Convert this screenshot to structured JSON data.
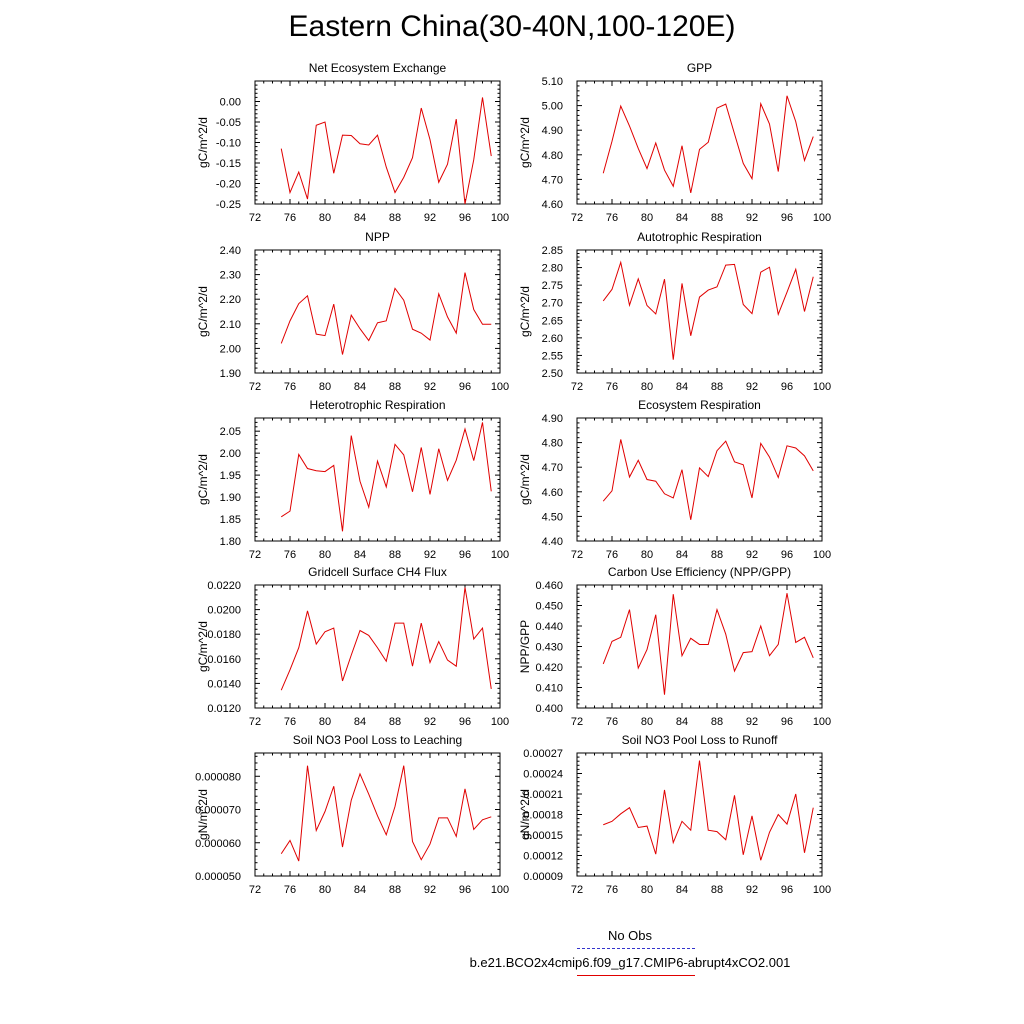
{
  "figure": {
    "title": "Eastern China(30-40N,100-120E)"
  },
  "colors": {
    "model_line": "#e00000",
    "obs_line": "#3333cc",
    "axis": "#000000"
  },
  "legend": {
    "entries": [
      {
        "label": "No Obs",
        "color": "#3333cc",
        "style": "dashed"
      },
      {
        "label": "b.e21.BCO2x4cmip6.f09_g17.CMIP6-abrupt4xCO2.001",
        "color": "#e00000",
        "style": "solid"
      }
    ]
  },
  "chart_data": [
    {
      "type": "line",
      "title": "Net Ecosystem Exchange",
      "ylabel": "gC/m^2/d",
      "xlim": [
        72,
        100
      ],
      "ylim": [
        -0.25,
        0.05
      ],
      "xticks": [
        72,
        76,
        80,
        84,
        88,
        92,
        96,
        100
      ],
      "yticks": [
        -0.25,
        -0.2,
        -0.15,
        -0.1,
        -0.05,
        0.0
      ],
      "ytick_labels": [
        "-0.25",
        "-0.20",
        "-0.15",
        "-0.10",
        "-0.05",
        "0.00"
      ],
      "x": [
        75,
        76,
        77,
        78,
        79,
        80,
        81,
        82,
        83,
        84,
        85,
        86,
        87,
        88,
        89,
        90,
        91,
        92,
        93,
        94,
        95,
        96,
        97,
        98,
        99
      ],
      "values": [
        -0.115,
        -0.222,
        -0.172,
        -0.238,
        -0.058,
        -0.05,
        -0.175,
        -0.082,
        -0.083,
        -0.103,
        -0.106,
        -0.082,
        -0.16,
        -0.222,
        -0.185,
        -0.137,
        -0.016,
        -0.093,
        -0.197,
        -0.153,
        -0.043,
        -0.25,
        -0.142,
        0.01,
        -0.133
      ]
    },
    {
      "type": "line",
      "title": "GPP",
      "ylabel": "gC/m^2/d",
      "xlim": [
        72,
        100
      ],
      "ylim": [
        4.6,
        5.1
      ],
      "xticks": [
        72,
        76,
        80,
        84,
        88,
        92,
        96,
        100
      ],
      "yticks": [
        4.6,
        4.7,
        4.8,
        4.9,
        5.0,
        5.1
      ],
      "ytick_labels": [
        "4.60",
        "4.70",
        "4.80",
        "4.90",
        "5.00",
        "5.10"
      ],
      "x": [
        75,
        76,
        77,
        78,
        79,
        80,
        81,
        82,
        83,
        84,
        85,
        86,
        87,
        88,
        89,
        90,
        91,
        92,
        93,
        94,
        95,
        96,
        97,
        98,
        99
      ],
      "values": [
        4.725,
        4.855,
        4.998,
        4.917,
        4.826,
        4.744,
        4.848,
        4.738,
        4.672,
        4.837,
        4.645,
        4.822,
        4.851,
        4.99,
        5.006,
        4.885,
        4.765,
        4.703,
        5.008,
        4.925,
        4.732,
        5.04,
        4.935,
        4.777,
        4.874
      ]
    },
    {
      "type": "line",
      "title": "NPP",
      "ylabel": "gC/m^2/d",
      "xlim": [
        72,
        100
      ],
      "ylim": [
        1.9,
        2.4
      ],
      "xticks": [
        72,
        76,
        80,
        84,
        88,
        92,
        96,
        100
      ],
      "yticks": [
        1.9,
        2.0,
        2.1,
        2.2,
        2.3,
        2.4
      ],
      "ytick_labels": [
        "1.90",
        "2.00",
        "2.10",
        "2.20",
        "2.30",
        "2.40"
      ],
      "x": [
        75,
        76,
        77,
        78,
        79,
        80,
        81,
        82,
        83,
        84,
        85,
        86,
        87,
        88,
        89,
        90,
        91,
        92,
        93,
        94,
        95,
        96,
        97,
        98,
        99
      ],
      "values": [
        2.02,
        2.112,
        2.182,
        2.214,
        2.058,
        2.052,
        2.18,
        1.975,
        2.135,
        2.08,
        2.032,
        2.104,
        2.112,
        2.244,
        2.196,
        2.078,
        2.062,
        2.034,
        2.222,
        2.128,
        2.062,
        2.308,
        2.158,
        2.098,
        2.098
      ]
    },
    {
      "type": "line",
      "title": "Autotrophic Respiration",
      "ylabel": "gC/m^2/d",
      "xlim": [
        72,
        100
      ],
      "ylim": [
        2.5,
        2.85
      ],
      "xticks": [
        72,
        76,
        80,
        84,
        88,
        92,
        96,
        100
      ],
      "yticks": [
        2.5,
        2.55,
        2.6,
        2.65,
        2.7,
        2.75,
        2.8,
        2.85
      ],
      "ytick_labels": [
        "2.50",
        "2.55",
        "2.60",
        "2.65",
        "2.70",
        "2.75",
        "2.80",
        "2.85"
      ],
      "x": [
        75,
        76,
        77,
        78,
        79,
        80,
        81,
        82,
        83,
        84,
        85,
        86,
        87,
        88,
        89,
        90,
        91,
        92,
        93,
        94,
        95,
        96,
        97,
        98,
        99
      ],
      "values": [
        2.705,
        2.738,
        2.815,
        2.693,
        2.768,
        2.692,
        2.668,
        2.767,
        2.538,
        2.755,
        2.606,
        2.716,
        2.736,
        2.745,
        2.807,
        2.809,
        2.695,
        2.669,
        2.787,
        2.801,
        2.667,
        2.73,
        2.795,
        2.675,
        2.774
      ]
    },
    {
      "type": "line",
      "title": "Heterotrophic Respiration",
      "ylabel": "gC/m^2/d",
      "xlim": [
        72,
        100
      ],
      "ylim": [
        1.8,
        2.08
      ],
      "xticks": [
        72,
        76,
        80,
        84,
        88,
        92,
        96,
        100
      ],
      "yticks": [
        1.8,
        1.85,
        1.9,
        1.95,
        2.0,
        2.05
      ],
      "ytick_labels": [
        "1.80",
        "1.85",
        "1.90",
        "1.95",
        "2.00",
        "2.05"
      ],
      "x": [
        75,
        76,
        77,
        78,
        79,
        80,
        81,
        82,
        83,
        84,
        85,
        86,
        87,
        88,
        89,
        90,
        91,
        92,
        93,
        94,
        95,
        96,
        97,
        98,
        99
      ],
      "values": [
        1.855,
        1.868,
        1.997,
        1.965,
        1.96,
        1.958,
        1.972,
        1.822,
        2.04,
        1.936,
        1.877,
        1.982,
        1.923,
        2.02,
        1.996,
        1.912,
        2.013,
        1.906,
        2.01,
        1.938,
        1.984,
        2.055,
        1.983,
        2.07,
        1.913
      ]
    },
    {
      "type": "line",
      "title": "Ecosystem Respiration",
      "ylabel": "gC/m^2/d",
      "xlim": [
        72,
        100
      ],
      "ylim": [
        4.4,
        4.9
      ],
      "xticks": [
        72,
        76,
        80,
        84,
        88,
        92,
        96,
        100
      ],
      "yticks": [
        4.4,
        4.5,
        4.6,
        4.7,
        4.8,
        4.9
      ],
      "ytick_labels": [
        "4.40",
        "4.50",
        "4.60",
        "4.70",
        "4.80",
        "4.90"
      ],
      "x": [
        75,
        76,
        77,
        78,
        79,
        80,
        81,
        82,
        83,
        84,
        85,
        86,
        87,
        88,
        89,
        90,
        91,
        92,
        93,
        94,
        95,
        96,
        97,
        98,
        99
      ],
      "values": [
        4.562,
        4.604,
        4.813,
        4.66,
        4.728,
        4.65,
        4.643,
        4.592,
        4.575,
        4.69,
        4.486,
        4.697,
        4.662,
        4.767,
        4.806,
        4.722,
        4.71,
        4.575,
        4.797,
        4.741,
        4.658,
        4.787,
        4.778,
        4.746,
        4.685
      ]
    },
    {
      "type": "line",
      "title": "Gridcell Surface CH4 Flux",
      "ylabel": "gC/m^2/d",
      "xlim": [
        72,
        100
      ],
      "ylim": [
        0.012,
        0.022
      ],
      "xticks": [
        72,
        76,
        80,
        84,
        88,
        92,
        96,
        100
      ],
      "yticks": [
        0.012,
        0.014,
        0.016,
        0.018,
        0.02,
        0.022
      ],
      "ytick_labels": [
        "0.0120",
        "0.0140",
        "0.0160",
        "0.0180",
        "0.0200",
        "0.0220"
      ],
      "x": [
        75,
        76,
        77,
        78,
        79,
        80,
        81,
        82,
        83,
        84,
        85,
        86,
        87,
        88,
        89,
        90,
        91,
        92,
        93,
        94,
        95,
        96,
        97,
        98,
        99
      ],
      "values": [
        0.01345,
        0.0151,
        0.0169,
        0.0199,
        0.0172,
        0.0182,
        0.0185,
        0.0142,
        0.0163,
        0.0183,
        0.0179,
        0.0169,
        0.0158,
        0.0189,
        0.0189,
        0.0154,
        0.0189,
        0.0157,
        0.0174,
        0.0159,
        0.0154,
        0.0218,
        0.0176,
        0.0185,
        0.01355
      ]
    },
    {
      "type": "line",
      "title": "Carbon Use Efficiency (NPP/GPP)",
      "ylabel": "NPP/GPP",
      "xlim": [
        72,
        100
      ],
      "ylim": [
        0.4,
        0.46
      ],
      "xticks": [
        72,
        76,
        80,
        84,
        88,
        92,
        96,
        100
      ],
      "yticks": [
        0.4,
        0.41,
        0.42,
        0.43,
        0.44,
        0.45,
        0.46
      ],
      "ytick_labels": [
        "0.400",
        "0.410",
        "0.420",
        "0.430",
        "0.440",
        "0.450",
        "0.460"
      ],
      "x": [
        75,
        76,
        77,
        78,
        79,
        80,
        81,
        82,
        83,
        84,
        85,
        86,
        87,
        88,
        89,
        90,
        91,
        92,
        93,
        94,
        95,
        96,
        97,
        98,
        99
      ],
      "values": [
        0.4215,
        0.4325,
        0.4345,
        0.448,
        0.4195,
        0.4285,
        0.4455,
        0.4065,
        0.4555,
        0.4255,
        0.434,
        0.431,
        0.431,
        0.448,
        0.436,
        0.418,
        0.427,
        0.4275,
        0.44,
        0.4255,
        0.431,
        0.456,
        0.432,
        0.4345,
        0.4245
      ]
    },
    {
      "type": "line",
      "title": "Soil NO3 Pool Loss to Leaching",
      "ylabel": "gN/m^2/d",
      "xlim": [
        72,
        100
      ],
      "ylim": [
        5e-05,
        8.7e-05
      ],
      "xticks": [
        72,
        76,
        80,
        84,
        88,
        92,
        96,
        100
      ],
      "yticks": [
        5e-05,
        6e-05,
        7e-05,
        8e-05
      ],
      "ytick_labels": [
        "0.000050",
        "0.000060",
        "0.000070",
        "0.000080"
      ],
      "x": [
        75,
        76,
        77,
        78,
        79,
        80,
        81,
        82,
        83,
        84,
        85,
        86,
        87,
        88,
        89,
        90,
        91,
        92,
        93,
        94,
        95,
        96,
        97,
        98,
        99
      ],
      "values": [
        5.67e-05,
        6.07e-05,
        5.45e-05,
        8.32e-05,
        6.37e-05,
        6.94e-05,
        7.7e-05,
        5.87e-05,
        7.28e-05,
        8.07e-05,
        7.46e-05,
        6.81e-05,
        6.24e-05,
        7.09e-05,
        8.32e-05,
        6.04e-05,
        5.49e-05,
        5.96e-05,
        6.75e-05,
        6.75e-05,
        6.19e-05,
        7.62e-05,
        6.4e-05,
        6.69e-05,
        6.78e-05
      ]
    },
    {
      "type": "line",
      "title": "Soil NO3 Pool Loss to Runoff",
      "ylabel": "gN/m^2/d",
      "xlim": [
        72,
        100
      ],
      "ylim": [
        9e-05,
        0.00027
      ],
      "xticks": [
        72,
        76,
        80,
        84,
        88,
        92,
        96,
        100
      ],
      "yticks": [
        9e-05,
        0.00012,
        0.00015,
        0.00018,
        0.00021,
        0.00024,
        0.00027
      ],
      "ytick_labels": [
        "0.00009",
        "0.00012",
        "0.00015",
        "0.00018",
        "0.00021",
        "0.00024",
        "0.00027"
      ],
      "x": [
        75,
        76,
        77,
        78,
        79,
        80,
        81,
        82,
        83,
        84,
        85,
        86,
        87,
        88,
        89,
        90,
        91,
        92,
        93,
        94,
        95,
        96,
        97,
        98,
        99
      ],
      "values": [
        0.000165,
        0.00017,
        0.000181,
        0.00019,
        0.000161,
        0.000163,
        0.000122,
        0.000216,
        0.000139,
        0.00017,
        0.000157,
        0.000259,
        0.000157,
        0.000155,
        0.000143,
        0.000208,
        0.000121,
        0.000178,
        0.000113,
        0.000154,
        0.00018,
        0.000166,
        0.00021,
        0.000124,
        0.00019
      ]
    }
  ]
}
